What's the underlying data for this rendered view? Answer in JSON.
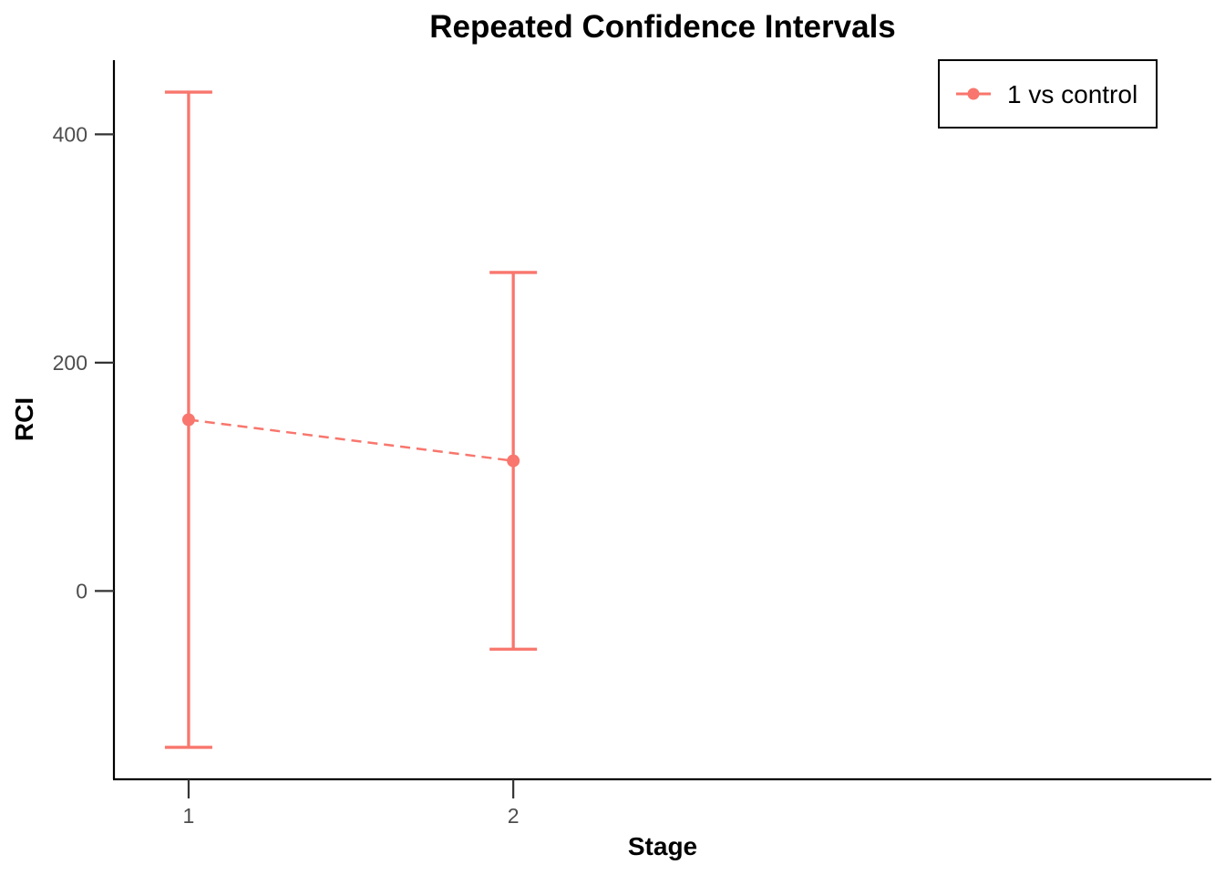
{
  "chart_data": {
    "type": "errorbar",
    "title": "Repeated Confidence Intervals",
    "xlabel": "Stage",
    "ylabel": "RCI",
    "x_ticks": [
      "1",
      "2"
    ],
    "y_ticks": [
      "0",
      "200",
      "400"
    ],
    "y_tick_values": [
      0,
      200,
      400
    ],
    "x_range": [
      0.77,
      4.15
    ],
    "ylim": [
      -165,
      465
    ],
    "grid": false,
    "legend": "top-right",
    "series": [
      {
        "name": "1 vs control",
        "color": "#F8766D",
        "x": [
          1,
          2
        ],
        "estimate": [
          150,
          114
        ],
        "lower": [
          -137,
          -51
        ],
        "upper": [
          437,
          279
        ]
      }
    ]
  }
}
